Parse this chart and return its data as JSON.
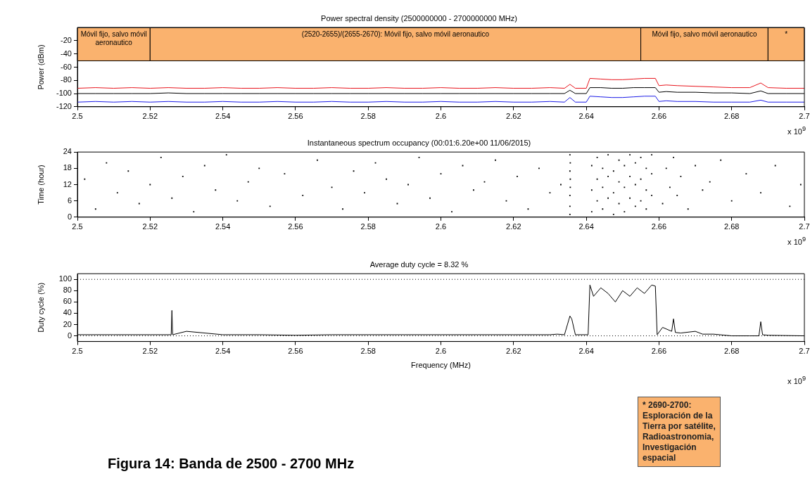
{
  "chart_data": [
    {
      "type": "line",
      "title": "Power spectral density (2500000000 - 2700000000 MHz)",
      "ylabel": "Power (dBm)",
      "annotations": [
        "x 10$^{9}$"
      ],
      "x": [
        2.5,
        2.505,
        2.51,
        2.515,
        2.52,
        2.525,
        2.53,
        2.535,
        2.54,
        2.545,
        2.55,
        2.555,
        2.56,
        2.565,
        2.57,
        2.575,
        2.58,
        2.585,
        2.59,
        2.595,
        2.6,
        2.605,
        2.61,
        2.615,
        2.62,
        2.625,
        2.63,
        2.634,
        2.6355,
        2.637,
        2.64,
        2.641,
        2.644,
        2.647,
        2.65,
        2.653,
        2.656,
        2.659,
        2.66,
        2.662,
        2.665,
        2.67,
        2.675,
        2.68,
        2.685,
        2.688,
        2.69,
        2.695,
        2.7
      ],
      "series": [
        {
          "color": "#e8141c",
          "values": [
            -92,
            -91,
            -92,
            -91,
            -92,
            -91,
            -92,
            -92,
            -91,
            -92,
            -92,
            -91,
            -92,
            -92,
            -91,
            -92,
            -92,
            -91,
            -92,
            -92,
            -91,
            -92,
            -92,
            -91,
            -92,
            -92,
            -91,
            -92,
            -86,
            -92,
            -92,
            -77,
            -78,
            -79,
            -79,
            -78,
            -77,
            -77,
            -88,
            -87,
            -88,
            -89,
            -90,
            -91,
            -91,
            -84,
            -91,
            -92,
            -92
          ]
        },
        {
          "color": "#000000",
          "values": [
            -100,
            -100,
            -100,
            -100,
            -100,
            -99,
            -100,
            -100,
            -100,
            -100,
            -100,
            -100,
            -100,
            -100,
            -100,
            -100,
            -100,
            -100,
            -100,
            -100,
            -100,
            -100,
            -100,
            -100,
            -100,
            -100,
            -100,
            -100,
            -95,
            -100,
            -100,
            -91,
            -91,
            -92,
            -92,
            -91,
            -91,
            -91,
            -98,
            -97,
            -98,
            -98,
            -99,
            -99,
            -100,
            -96,
            -100,
            -100,
            -100
          ]
        },
        {
          "color": "#1a1ae6",
          "values": [
            -113,
            -112,
            -113,
            -112,
            -113,
            -112,
            -113,
            -113,
            -112,
            -113,
            -113,
            -112,
            -113,
            -113,
            -112,
            -113,
            -113,
            -112,
            -113,
            -113,
            -112,
            -113,
            -113,
            -112,
            -113,
            -113,
            -112,
            -113,
            -106,
            -113,
            -113,
            -104,
            -105,
            -106,
            -106,
            -105,
            -104,
            -104,
            -112,
            -111,
            -112,
            -112,
            -113,
            -113,
            -113,
            -110,
            -113,
            -113,
            -113
          ]
        }
      ],
      "xlim": [
        2.5,
        2.7
      ],
      "xticks": [
        2.5,
        2.52,
        2.54,
        2.56,
        2.58,
        2.6,
        2.62,
        2.64,
        2.66,
        2.68,
        2.7
      ],
      "ylim": [
        -120,
        0
      ],
      "yticks": [
        -120,
        -100,
        -80,
        -60,
        -40,
        -20
      ],
      "legend": false,
      "grid": false,
      "bands": [
        {
          "axis": "x",
          "from": 2.5,
          "to": 2.52,
          "label": "Móvil fijo, salvo móvil aeronautico",
          "color": "#fab26e"
        },
        {
          "axis": "x",
          "from": 2.52,
          "to": 2.655,
          "label": "(2520-2655)/(2655-2670): Móvil fijo, salvo móvil aeronautico",
          "color": "#fab26e"
        },
        {
          "axis": "x",
          "from": 2.655,
          "to": 2.69,
          "label": "Móvil fijo, salvo móvil aeronautico",
          "color": "#fab26e"
        },
        {
          "axis": "x",
          "from": 2.69,
          "to": 2.7,
          "label": "*",
          "color": "#fab26e"
        }
      ]
    },
    {
      "type": "scatter",
      "title": "Instantaneous spectrum occupancy (00:01:6.20e+00 11/06/2015)",
      "ylabel": "Time (hour)",
      "annotations": [
        "x 10$^{9}$"
      ],
      "color": "#000000",
      "marker": "square",
      "legend": false,
      "grid": false,
      "x": [
        2.502,
        2.505,
        2.508,
        2.511,
        2.514,
        2.517,
        2.52,
        2.523,
        2.526,
        2.529,
        2.532,
        2.535,
        2.538,
        2.541,
        2.544,
        2.547,
        2.55,
        2.553,
        2.557,
        2.562,
        2.566,
        2.57,
        2.573,
        2.576,
        2.579,
        2.582,
        2.585,
        2.588,
        2.591,
        2.594,
        2.597,
        2.6,
        2.603,
        2.606,
        2.609,
        2.612,
        2.615,
        2.618,
        2.621,
        2.624,
        2.627,
        2.63,
        2.633,
        2.6355,
        2.6355,
        2.6355,
        2.6356,
        2.6356,
        2.6355,
        2.6356,
        2.6355,
        2.661,
        2.662,
        2.663,
        2.664,
        2.665,
        2.666,
        2.668,
        2.67,
        2.672,
        2.674,
        2.677,
        2.68,
        2.684,
        2.688,
        2.692,
        2.696,
        2.699,
        2.6415,
        2.6415,
        2.6415,
        2.643,
        2.643,
        2.643,
        2.6445,
        2.6445,
        2.6445,
        2.646,
        2.646,
        2.646,
        2.6475,
        2.6475,
        2.6475,
        2.649,
        2.649,
        2.649,
        2.6505,
        2.6505,
        2.6505,
        2.652,
        2.652,
        2.652,
        2.6535,
        2.6535,
        2.6535,
        2.655,
        2.655,
        2.655,
        2.6565,
        2.6565,
        2.6565,
        2.658,
        2.658,
        2.658
      ],
      "values": [
        14,
        3,
        20,
        9,
        17,
        5,
        12,
        22,
        7,
        15,
        2,
        19,
        10,
        23,
        6,
        13,
        18,
        4,
        16,
        8,
        21,
        11,
        3,
        17,
        9,
        20,
        14,
        5,
        12,
        22,
        7,
        16,
        2,
        19,
        10,
        13,
        21,
        6,
        15,
        3,
        18,
        9,
        12,
        1,
        4,
        8,
        11,
        14,
        17,
        20,
        23,
        5,
        18,
        11,
        22,
        8,
        15,
        3,
        19,
        10,
        13,
        21,
        6,
        16,
        9,
        19,
        4,
        12,
        2,
        10,
        19,
        6,
        14,
        22,
        3,
        11,
        18,
        7,
        15,
        23,
        1,
        9,
        17,
        5,
        13,
        21,
        2,
        11,
        19,
        7,
        15,
        23,
        4,
        12,
        20,
        6,
        14,
        22,
        3,
        10,
        18,
        8,
        16,
        23
      ],
      "xlim": [
        2.5,
        2.7
      ],
      "xticks": [
        2.5,
        2.52,
        2.54,
        2.56,
        2.58,
        2.6,
        2.62,
        2.64,
        2.66,
        2.68,
        2.7
      ],
      "ylim": [
        0,
        24
      ],
      "yticks": [
        0,
        6,
        12,
        18,
        24
      ]
    },
    {
      "type": "line",
      "title": "Average duty cycle = 8.32 %",
      "xlabel": "Frequency (MHz)",
      "ylabel": "Duty cycle (%)",
      "annotations": [
        "x 10$^{9}$",
        "* 2690-2700: Esploración de la Tierra por satélite, Radioastronomia, Investigación espacial",
        "Figura 14: Banda de 2500 - 2700 MHz"
      ],
      "color": "#000000",
      "legend": false,
      "grid": false,
      "x": [
        2.5,
        2.51,
        2.52,
        2.5258,
        2.526,
        2.5262,
        2.53,
        2.54,
        2.55,
        2.56,
        2.57,
        2.58,
        2.59,
        2.6,
        2.61,
        2.62,
        2.63,
        2.632,
        2.634,
        2.6355,
        2.636,
        2.637,
        2.6405,
        2.641,
        2.642,
        2.644,
        2.646,
        2.648,
        2.65,
        2.652,
        2.654,
        2.656,
        2.658,
        2.659,
        2.6595,
        2.661,
        2.6635,
        2.664,
        2.6645,
        2.666,
        2.67,
        2.672,
        2.675,
        2.68,
        2.685,
        2.6875,
        2.688,
        2.6885,
        2.69,
        2.7
      ],
      "values": [
        2,
        2,
        2,
        2,
        45,
        2,
        8,
        2,
        2,
        1,
        2,
        2,
        2,
        2,
        2,
        2,
        2,
        3,
        2,
        35,
        30,
        2,
        2,
        90,
        70,
        85,
        75,
        60,
        80,
        70,
        85,
        75,
        90,
        88,
        2,
        15,
        8,
        30,
        6,
        5,
        8,
        3,
        3,
        0,
        0,
        0,
        25,
        2,
        1,
        0
      ],
      "xlim": [
        2.5,
        2.7
      ],
      "xticks": [
        2.5,
        2.52,
        2.54,
        2.56,
        2.58,
        2.6,
        2.62,
        2.64,
        2.66,
        2.68,
        2.7
      ],
      "ylim": [
        -10,
        110
      ],
      "yticks": [
        0,
        20,
        40,
        60,
        80,
        100
      ],
      "ref_lines": [
        {
          "axis": "y",
          "value": 0,
          "line_style": "dotted"
        },
        {
          "axis": "y",
          "value": 100,
          "line_style": "dotted"
        }
      ]
    }
  ]
}
